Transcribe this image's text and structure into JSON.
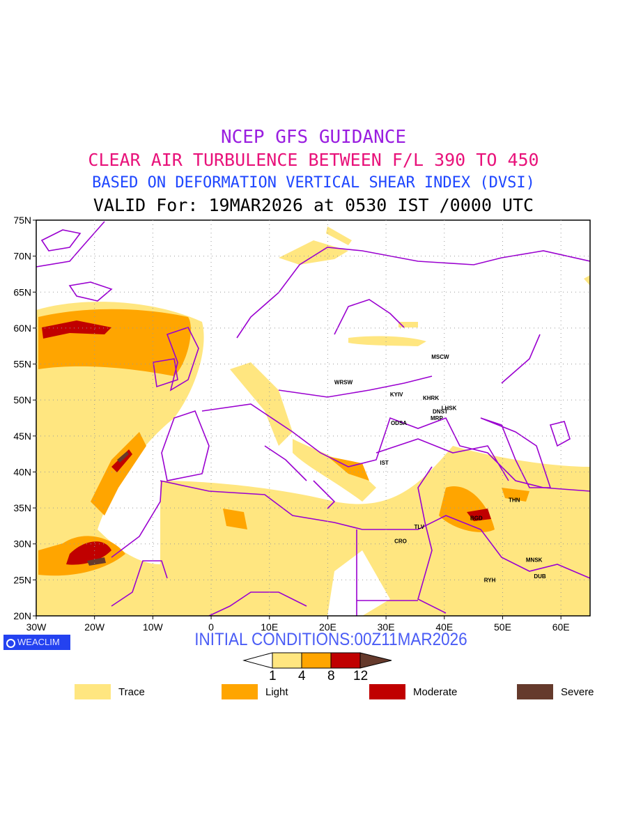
{
  "titles": {
    "line1": "NCEP GFS GUIDANCE",
    "line2": "CLEAR AIR TURBULENCE BETWEEN F/L 390 TO 450",
    "line3": "BASED ON DEFORMATION VERTICAL SHEAR INDEX (DVSI)",
    "line4": "VALID For: 19MAR2026 at 0530 IST /0000 UTC"
  },
  "map": {
    "lon_range": [
      -30,
      65
    ],
    "lat_range": [
      20,
      75
    ],
    "lon_ticks": [
      {
        "v": -30,
        "label": "30W"
      },
      {
        "v": -20,
        "label": "20W"
      },
      {
        "v": -10,
        "label": "10W"
      },
      {
        "v": 0,
        "label": "0"
      },
      {
        "v": 10,
        "label": "10E"
      },
      {
        "v": 20,
        "label": "20E"
      },
      {
        "v": 30,
        "label": "30E"
      },
      {
        "v": 40,
        "label": "40E"
      },
      {
        "v": 50,
        "label": "50E"
      },
      {
        "v": 60,
        "label": "60E"
      }
    ],
    "lat_ticks": [
      {
        "v": 75,
        "label": "75N"
      },
      {
        "v": 70,
        "label": "70N"
      },
      {
        "v": 65,
        "label": "65N"
      },
      {
        "v": 60,
        "label": "60N"
      },
      {
        "v": 55,
        "label": "55N"
      },
      {
        "v": 50,
        "label": "50N"
      },
      {
        "v": 45,
        "label": "45N"
      },
      {
        "v": 40,
        "label": "40N"
      },
      {
        "v": 35,
        "label": "35N"
      },
      {
        "v": 30,
        "label": "30N"
      },
      {
        "v": 25,
        "label": "25N"
      },
      {
        "v": 20,
        "label": "20N"
      }
    ],
    "cities": [
      {
        "label": "MSCW",
        "lon": 39.3,
        "lat": 56.0
      },
      {
        "label": "WRSW",
        "lon": 22.7,
        "lat": 52.5
      },
      {
        "label": "KYIV",
        "lon": 31.8,
        "lat": 50.8
      },
      {
        "label": "KHRK",
        "lon": 37.7,
        "lat": 50.3
      },
      {
        "label": "LHSK",
        "lon": 40.8,
        "lat": 48.9
      },
      {
        "label": "DNST",
        "lon": 39.3,
        "lat": 48.4
      },
      {
        "label": "MRP",
        "lon": 38.7,
        "lat": 47.5
      },
      {
        "label": "ODSA",
        "lon": 32.2,
        "lat": 46.8
      },
      {
        "label": "IST",
        "lon": 29.7,
        "lat": 41.3
      },
      {
        "label": "TLV",
        "lon": 35.7,
        "lat": 32.4
      },
      {
        "label": "CRO",
        "lon": 32.5,
        "lat": 30.4
      },
      {
        "label": "BGD",
        "lon": 45.5,
        "lat": 33.6
      },
      {
        "label": "THN",
        "lon": 52.0,
        "lat": 36.1
      },
      {
        "label": "MNSK",
        "lon": 55.4,
        "lat": 27.8
      },
      {
        "label": "DUB",
        "lon": 56.4,
        "lat": 25.5
      },
      {
        "label": "RYH",
        "lon": 47.8,
        "lat": 25.0
      }
    ]
  },
  "footer": {
    "brand": "WEACLIM",
    "initial_conditions": "INITIAL CONDITIONS:00Z11MAR2026"
  },
  "colorbar": {
    "levels": [
      "1",
      "4",
      "8",
      "12"
    ],
    "colors": [
      "#ffe680",
      "#ffa500",
      "#c00000",
      "#653a2c"
    ]
  },
  "legend": [
    {
      "label": "Trace",
      "color": "#ffe680"
    },
    {
      "label": "Light",
      "color": "#ffa500"
    },
    {
      "label": "Moderate",
      "color": "#c00000"
    },
    {
      "label": "Severe",
      "color": "#653a2c"
    }
  ],
  "colors": {
    "border": "#9a00d0",
    "grid": "#999999"
  }
}
